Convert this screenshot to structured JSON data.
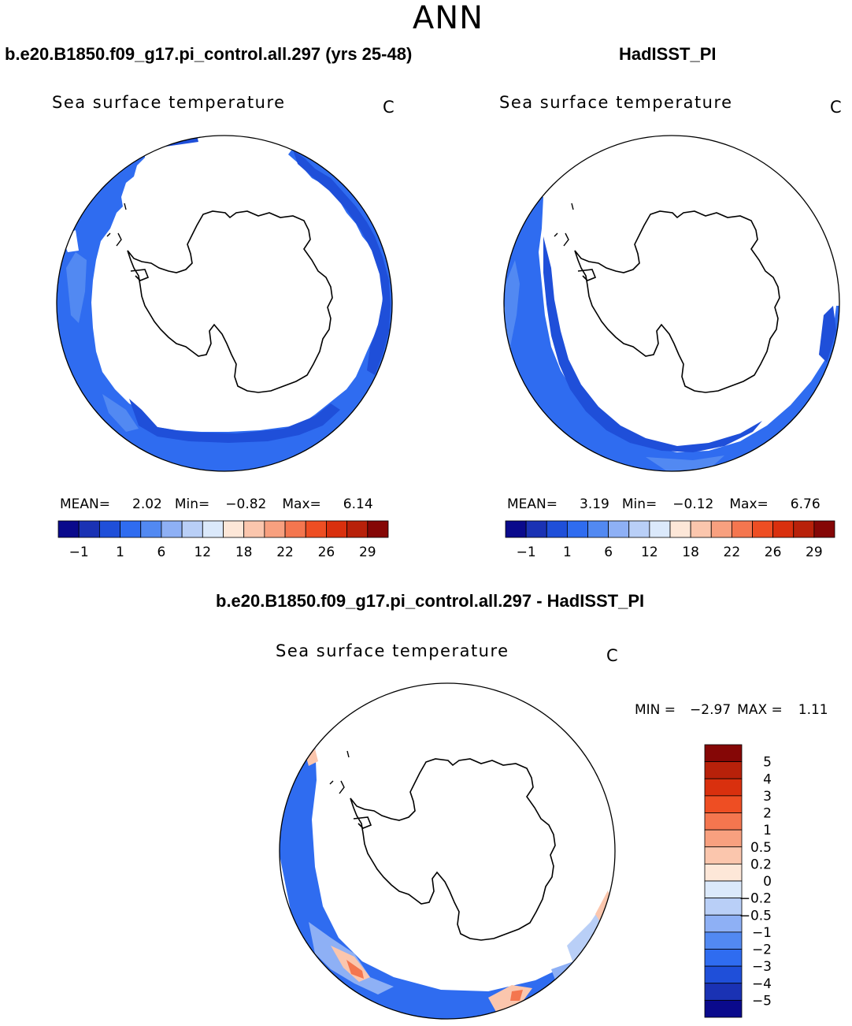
{
  "figure": {
    "title": "ANN",
    "left_panel_title": "b.e20.B1850.f09_g17.pi_control.all.297 (yrs 25-48)",
    "right_panel_title": "HadISST_PI",
    "diff_panel_title": "b.e20.B1850.f09_g17.pi_control.all.297 - HadISST_PI"
  },
  "chart_data": [
    {
      "type": "heatmap",
      "projection": "south-polar-stereographic",
      "title": "Sea surface temperature",
      "units": "C",
      "stats": {
        "mean_label": "MEAN=",
        "mean": "2.02",
        "min_label": "Min=",
        "min": "−0.82",
        "max_label": "Max=",
        "max": "6.14"
      },
      "colorbar": {
        "colors": [
          "#0a0a8c",
          "#1a32b4",
          "#1f4fd9",
          "#2f6cf0",
          "#5289f2",
          "#8eb0f5",
          "#b9cff7",
          "#dbe9fb",
          "#fde7d8",
          "#fbc6ad",
          "#f8a07f",
          "#f4764f",
          "#ee4e23",
          "#d9300e",
          "#b8210a",
          "#850706"
        ],
        "tick_labels": [
          "−1",
          "1",
          "6",
          "12",
          "18",
          "22",
          "26",
          "29"
        ]
      }
    },
    {
      "type": "heatmap",
      "projection": "south-polar-stereographic",
      "title": "Sea surface temperature",
      "units": "C",
      "stats": {
        "mean_label": "MEAN=",
        "mean": "3.19",
        "min_label": "Min=",
        "min": "−0.12",
        "max_label": "Max=",
        "max": "6.76"
      },
      "colorbar": {
        "colors": [
          "#0a0a8c",
          "#1a32b4",
          "#1f4fd9",
          "#2f6cf0",
          "#5289f2",
          "#8eb0f5",
          "#b9cff7",
          "#dbe9fb",
          "#fde7d8",
          "#fbc6ad",
          "#f8a07f",
          "#f4764f",
          "#ee4e23",
          "#d9300e",
          "#b8210a",
          "#850706"
        ],
        "tick_labels": [
          "−1",
          "1",
          "6",
          "12",
          "18",
          "22",
          "26",
          "29"
        ]
      }
    },
    {
      "type": "heatmap",
      "projection": "south-polar-stereographic",
      "title": "Sea surface temperature",
      "units": "C",
      "stats": {
        "min_label": "MIN =",
        "min": "−2.97",
        "max_label": "MAX =",
        "max": "1.11"
      },
      "colorbar": {
        "colors": [
          "#850706",
          "#b8210a",
          "#d9300e",
          "#ee4e23",
          "#f4764f",
          "#f8a07f",
          "#fbc6ad",
          "#fde7d8",
          "#dbe9fb",
          "#b9cff7",
          "#8eb0f5",
          "#5289f2",
          "#2f6cf0",
          "#1f4fd9",
          "#1a32b4",
          "#0a0a8c"
        ],
        "tick_labels": [
          "5",
          "4",
          "3",
          "2",
          "1",
          "0.5",
          "0.2",
          "0",
          "−0.2",
          "−0.5",
          "−1",
          "−2",
          "−3",
          "−4",
          "−5"
        ]
      }
    }
  ]
}
